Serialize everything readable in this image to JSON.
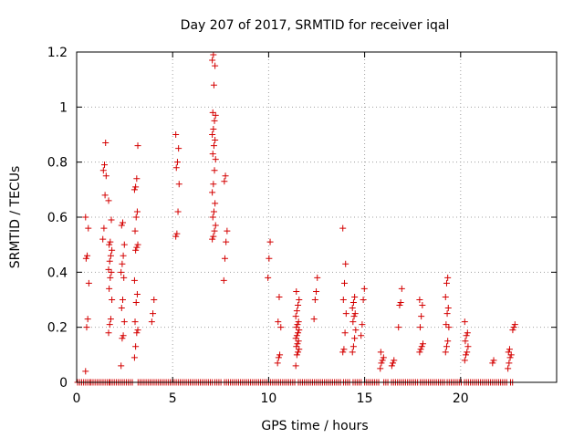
{
  "chart_data": {
    "type": "scatter",
    "title": "Day 207 of 2017, SRMTID for receiver iqal",
    "xlabel": "GPS time / hours",
    "ylabel": "SRMTID / TECUs",
    "xlim": [
      0,
      25
    ],
    "ylim": [
      0,
      1.2
    ],
    "xticks": [
      0,
      5,
      10,
      15,
      20
    ],
    "xtick_labels": [
      "0",
      "5",
      "10",
      "15",
      "20"
    ],
    "yticks": [
      0,
      0.2,
      0.4,
      0.6,
      0.8,
      1.0,
      1.2
    ],
    "ytick_labels": [
      "0",
      "0.2",
      "0.4",
      "0.6",
      "0.8",
      "1",
      "1.2"
    ],
    "grid": true,
    "marker": "plus",
    "color": "#d40000",
    "series": [
      {
        "name": "SRMTID",
        "clusters": [
          {
            "t": 0.55,
            "values": [
              0.04,
              0.2,
              0.23,
              0.36,
              0.45,
              0.46,
              0.56,
              0.6
            ]
          },
          {
            "t": 1.45,
            "values": [
              0.52,
              0.56,
              0.68,
              0.75,
              0.77,
              0.79,
              0.87
            ]
          },
          {
            "t": 1.75,
            "values": [
              0.18,
              0.21,
              0.23,
              0.3,
              0.34,
              0.38,
              0.4,
              0.41,
              0.44,
              0.46,
              0.48,
              0.5,
              0.51,
              0.59,
              0.66
            ]
          },
          {
            "t": 2.4,
            "values": [
              0.06,
              0.16,
              0.17,
              0.22,
              0.27,
              0.3,
              0.38,
              0.4,
              0.43,
              0.46,
              0.5,
              0.57,
              0.58
            ]
          },
          {
            "t": 3.1,
            "values": [
              0.09,
              0.13,
              0.18,
              0.19,
              0.22,
              0.29,
              0.32,
              0.37,
              0.48,
              0.49,
              0.5,
              0.55,
              0.6,
              0.62,
              0.7,
              0.71,
              0.74,
              0.86
            ]
          },
          {
            "t": 4.0,
            "values": [
              0.22,
              0.25,
              0.3
            ]
          },
          {
            "t": 5.25,
            "values": [
              0.53,
              0.54,
              0.62,
              0.72,
              0.78,
              0.8,
              0.85,
              0.9
            ]
          },
          {
            "t": 7.15,
            "values": [
              0.52,
              0.53,
              0.55,
              0.57,
              0.6,
              0.62,
              0.65,
              0.69,
              0.72,
              0.77,
              0.81,
              0.83,
              0.86,
              0.88,
              0.9,
              0.92,
              0.95,
              0.97,
              0.98,
              1.08,
              1.15,
              1.17,
              1.19
            ]
          },
          {
            "t": 7.75,
            "values": [
              0.37,
              0.45,
              0.51,
              0.55,
              0.73,
              0.75
            ]
          },
          {
            "t": 10.05,
            "values": [
              0.38,
              0.45,
              0.51
            ]
          },
          {
            "t": 10.55,
            "values": [
              0.07,
              0.09,
              0.1,
              0.2,
              0.22,
              0.31
            ]
          },
          {
            "t": 11.5,
            "values": [
              0.06,
              0.1,
              0.11,
              0.12,
              0.13,
              0.14,
              0.15,
              0.16,
              0.17,
              0.18,
              0.19,
              0.2,
              0.21,
              0.22,
              0.24,
              0.26,
              0.28,
              0.3,
              0.33
            ]
          },
          {
            "t": 12.45,
            "values": [
              0.23,
              0.3,
              0.33,
              0.38
            ]
          },
          {
            "t": 13.95,
            "values": [
              0.11,
              0.12,
              0.18,
              0.25,
              0.3,
              0.36,
              0.43,
              0.56
            ]
          },
          {
            "t": 14.45,
            "values": [
              0.11,
              0.13,
              0.16,
              0.19,
              0.22,
              0.24,
              0.25,
              0.27,
              0.29,
              0.31
            ]
          },
          {
            "t": 14.9,
            "values": [
              0.17,
              0.21,
              0.3,
              0.34
            ]
          },
          {
            "t": 15.9,
            "values": [
              0.05,
              0.07,
              0.08,
              0.09,
              0.11
            ]
          },
          {
            "t": 16.5,
            "values": [
              0.06,
              0.07,
              0.08
            ]
          },
          {
            "t": 16.85,
            "values": [
              0.2,
              0.28,
              0.29,
              0.34
            ]
          },
          {
            "t": 17.95,
            "values": [
              0.11,
              0.12,
              0.13,
              0.14,
              0.2,
              0.24,
              0.28,
              0.3
            ]
          },
          {
            "t": 19.3,
            "values": [
              0.11,
              0.13,
              0.15,
              0.2,
              0.21,
              0.25,
              0.27,
              0.31,
              0.36,
              0.38
            ]
          },
          {
            "t": 20.3,
            "values": [
              0.08,
              0.1,
              0.11,
              0.13,
              0.15,
              0.17,
              0.18,
              0.22
            ]
          },
          {
            "t": 21.75,
            "values": [
              0.07,
              0.08
            ]
          },
          {
            "t": 22.55,
            "values": [
              0.05,
              0.07,
              0.09,
              0.1,
              0.11,
              0.12
            ]
          },
          {
            "t": 22.8,
            "values": [
              0.19,
              0.2,
              0.21
            ]
          }
        ],
        "baseline_value": 0.0,
        "baseline_segments": [
          [
            0.05,
            0.7
          ],
          [
            0.75,
            1.7
          ],
          [
            1.75,
            3.0
          ],
          [
            3.2,
            7.1
          ],
          [
            7.2,
            7.6
          ],
          [
            7.7,
            11.4
          ],
          [
            11.55,
            13.8
          ],
          [
            13.9,
            14.3
          ],
          [
            14.4,
            14.9
          ],
          [
            15.0,
            15.8
          ],
          [
            16.0,
            16.3
          ],
          [
            16.4,
            17.8
          ],
          [
            17.9,
            19.2
          ],
          [
            19.3,
            20.1
          ],
          [
            20.2,
            22.5
          ],
          [
            22.6,
            22.8
          ]
        ]
      }
    ]
  }
}
